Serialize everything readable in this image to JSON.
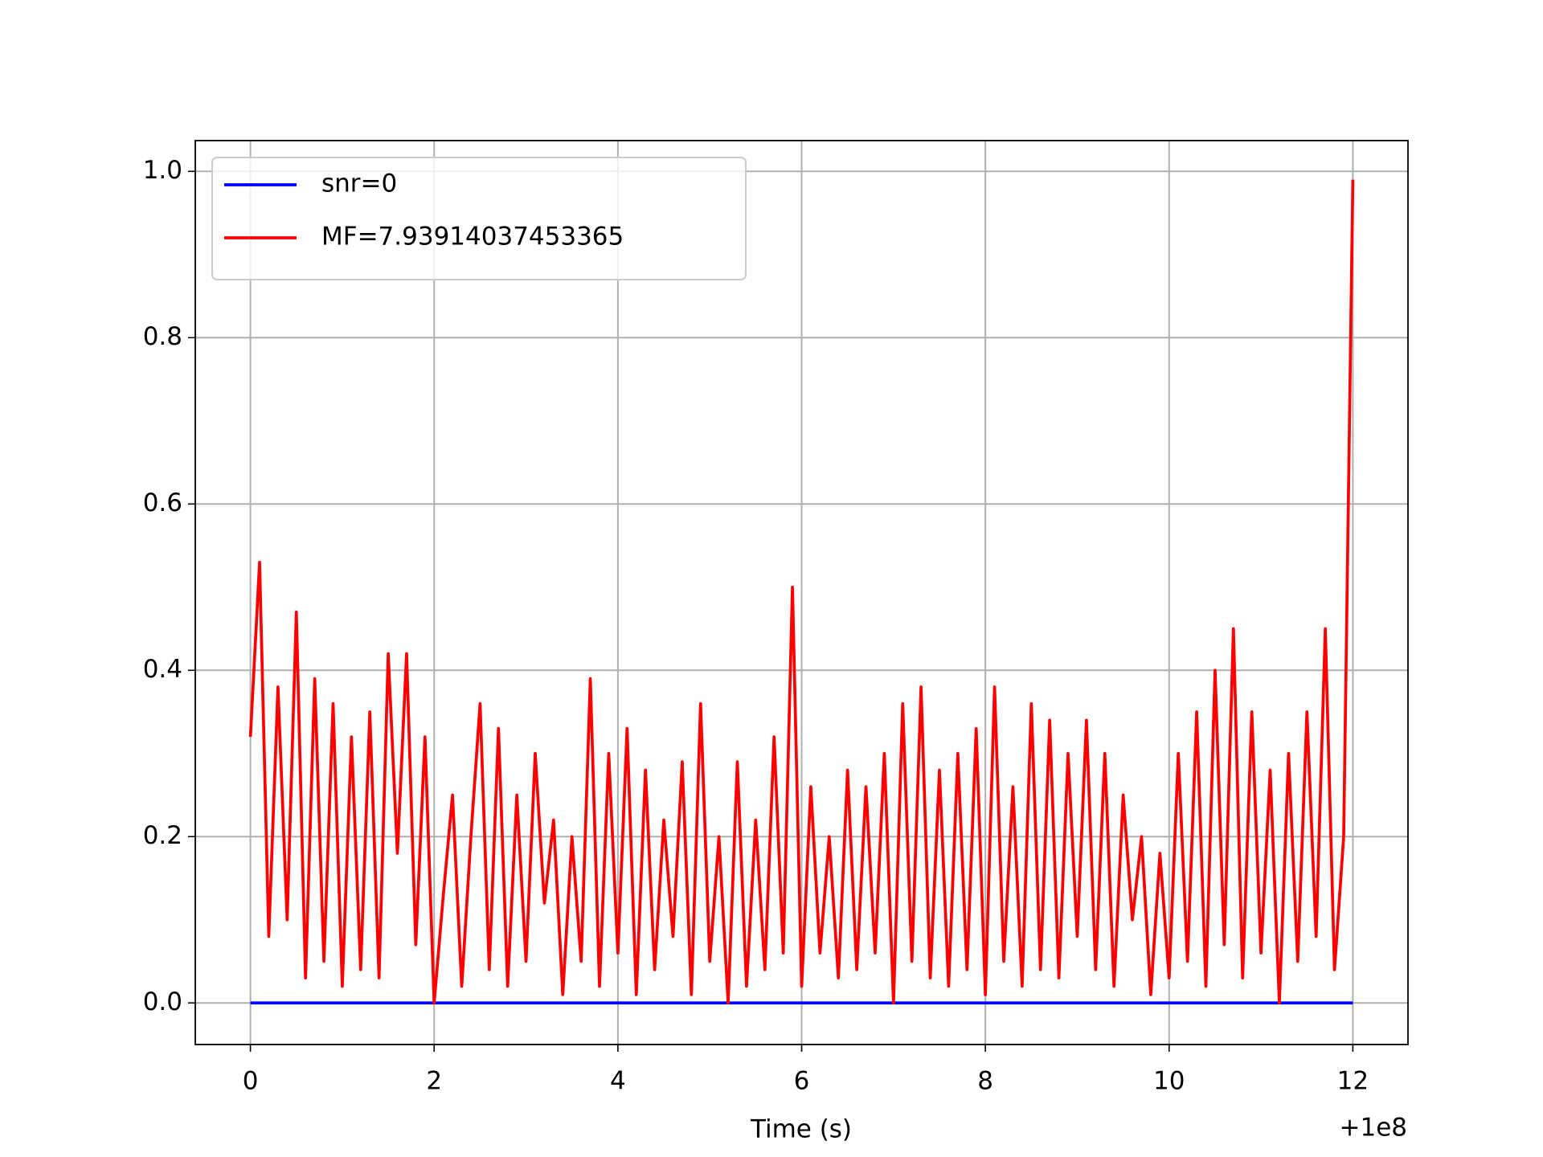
{
  "chart_data": {
    "type": "line",
    "xlabel": "Time (s)",
    "x_offset_label": "+1e8",
    "xlim": [
      -0.6,
      12.6
    ],
    "ylim": [
      -0.05,
      1.037
    ],
    "xticks": [
      0,
      2,
      4,
      6,
      8,
      10,
      12
    ],
    "yticks": [
      {
        "value": 0,
        "label": "0.0"
      },
      {
        "value": 0.2,
        "label": "0.2"
      },
      {
        "value": 0.4,
        "label": "0.4"
      },
      {
        "value": 0.6,
        "label": "0.6"
      },
      {
        "value": 0.8,
        "label": "0.8"
      },
      {
        "value": 1,
        "label": "1.0"
      }
    ],
    "grid": true,
    "legend": "upper left",
    "series": [
      {
        "name": "snr=0",
        "color": "#0000ff",
        "x": [
          0,
          12
        ],
        "values": [
          0,
          0
        ]
      },
      {
        "name": "MF=7.93914037453365",
        "color": "#ff0000",
        "x": [
          0,
          0.1,
          0.2,
          0.3,
          0.4,
          0.5,
          0.6,
          0.7,
          0.8,
          0.9,
          1,
          1.1,
          1.2,
          1.3,
          1.4,
          1.5,
          1.6,
          1.7,
          1.8,
          1.9,
          2,
          2.1,
          2.2,
          2.3,
          2.4,
          2.5,
          2.6,
          2.7,
          2.8,
          2.9,
          3,
          3.1,
          3.2,
          3.3,
          3.4,
          3.5,
          3.6,
          3.7,
          3.8,
          3.9,
          4,
          4.1,
          4.2,
          4.3,
          4.4,
          4.5,
          4.6,
          4.7,
          4.8,
          4.9,
          5,
          5.1,
          5.2,
          5.3,
          5.4,
          5.5,
          5.6,
          5.7,
          5.8,
          5.9,
          6,
          6.1,
          6.2,
          6.3,
          6.4,
          6.5,
          6.6,
          6.7,
          6.8,
          6.9,
          7,
          7.1,
          7.2,
          7.3,
          7.4,
          7.5,
          7.6,
          7.7,
          7.8,
          7.9,
          8,
          8.1,
          8.2,
          8.3,
          8.4,
          8.5,
          8.6,
          8.7,
          8.8,
          8.9,
          9,
          9.1,
          9.2,
          9.3,
          9.4,
          9.5,
          9.6,
          9.7,
          9.8,
          9.9,
          10,
          10.1,
          10.2,
          10.3,
          10.4,
          10.5,
          10.6,
          10.7,
          10.8,
          10.9,
          11,
          11.1,
          11.2,
          11.3,
          11.4,
          11.5,
          11.6,
          11.7,
          11.8,
          11.9,
          12
        ],
        "values": [
          0.32,
          0.53,
          0.08,
          0.38,
          0.1,
          0.47,
          0.03,
          0.39,
          0.05,
          0.36,
          0.02,
          0.32,
          0.04,
          0.35,
          0.03,
          0.42,
          0.18,
          0.42,
          0.07,
          0.32,
          0,
          0.13,
          0.25,
          0.02,
          0.2,
          0.36,
          0.04,
          0.33,
          0.02,
          0.25,
          0.05,
          0.3,
          0.12,
          0.22,
          0.01,
          0.2,
          0.05,
          0.39,
          0.02,
          0.3,
          0.06,
          0.33,
          0.01,
          0.28,
          0.04,
          0.22,
          0.08,
          0.29,
          0.01,
          0.36,
          0.05,
          0.2,
          0,
          0.29,
          0.02,
          0.22,
          0.04,
          0.32,
          0.06,
          0.5,
          0.02,
          0.26,
          0.06,
          0.2,
          0.03,
          0.28,
          0.04,
          0.26,
          0.06,
          0.3,
          0,
          0.36,
          0.05,
          0.38,
          0.03,
          0.28,
          0.02,
          0.3,
          0.04,
          0.33,
          0.01,
          0.38,
          0.05,
          0.26,
          0.02,
          0.36,
          0.04,
          0.34,
          0.03,
          0.3,
          0.08,
          0.34,
          0.04,
          0.3,
          0.02,
          0.25,
          0.1,
          0.2,
          0.01,
          0.18,
          0.03,
          0.3,
          0.05,
          0.35,
          0.02,
          0.4,
          0.07,
          0.45,
          0.03,
          0.35,
          0.06,
          0.28,
          0,
          0.3,
          0.05,
          0.35,
          0.08,
          0.45,
          0.04,
          0.2,
          0.99
        ]
      }
    ]
  }
}
